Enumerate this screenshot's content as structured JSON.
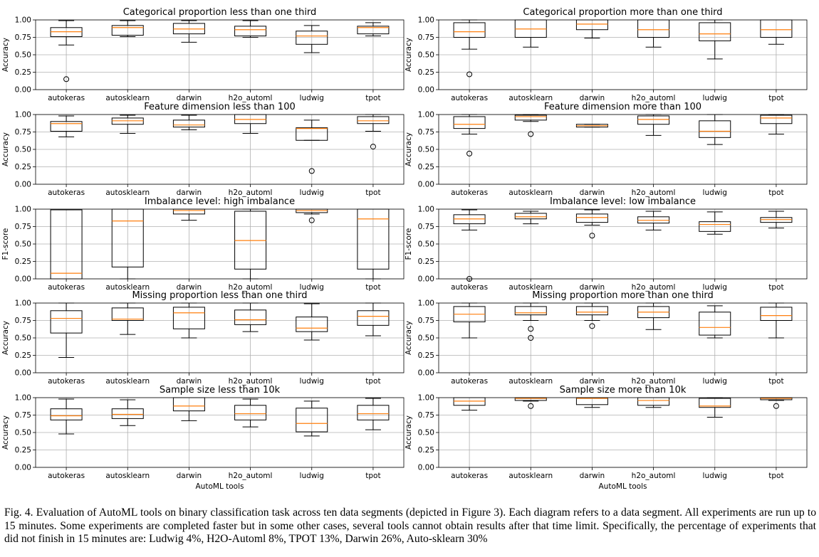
{
  "caption": "Fig. 4.  Evaluation of AutoML tools on binary classification task across ten data segments (depicted in Figure 3). Each diagram refers to a data segment. All experiments are run up to 15 minutes. Some experiments are completed faster but in some other cases, several tools cannot obtain results after that time limit. Specifically, the percentage of experiments that did not finish in 15 minutes are: Ludwig 4%, H2O-Automl 8%, TPOT 13%, Darwin 26%, Auto-sklearn 30%",
  "colors": {
    "box": "#000000",
    "median": "#ff7f0e",
    "grid": "#b0b0b0"
  },
  "chart_data": [
    {
      "type": "boxplot",
      "title": "Categorical proportion less than one third",
      "ylabel": "Accuracy",
      "xlabel": "",
      "ylim": [
        0,
        1
      ],
      "yticks": [
        "0.00",
        "0.25",
        "0.50",
        "0.75",
        "1.00"
      ],
      "grid": true,
      "categories": [
        "autokeras",
        "autosklearn",
        "darwin",
        "h2o_automl",
        "ludwig",
        "tpot"
      ],
      "boxes": [
        {
          "whislo": 0.64,
          "q1": 0.76,
          "med": 0.83,
          "q3": 0.89,
          "whishi": 0.99,
          "fliers": [
            0.15
          ]
        },
        {
          "whislo": 0.76,
          "q1": 0.78,
          "med": 0.89,
          "q3": 0.92,
          "whishi": 0.99,
          "fliers": []
        },
        {
          "whislo": 0.68,
          "q1": 0.8,
          "med": 0.87,
          "q3": 0.95,
          "whishi": 0.99,
          "fliers": []
        },
        {
          "whislo": 0.75,
          "q1": 0.77,
          "med": 0.86,
          "q3": 0.91,
          "whishi": 0.99,
          "fliers": []
        },
        {
          "whislo": 0.53,
          "q1": 0.65,
          "med": 0.77,
          "q3": 0.84,
          "whishi": 0.92,
          "fliers": []
        },
        {
          "whislo": 0.77,
          "q1": 0.8,
          "med": 0.89,
          "q3": 0.91,
          "whishi": 0.96,
          "fliers": []
        }
      ]
    },
    {
      "type": "boxplot",
      "title": "Categorical proportion more than one third",
      "ylabel": "Accuracy",
      "xlabel": "",
      "ylim": [
        0,
        1
      ],
      "yticks": [
        "0.00",
        "0.25",
        "0.50",
        "0.75",
        "1.00"
      ],
      "grid": true,
      "categories": [
        "autokeras",
        "autosklearn",
        "darwin",
        "h2o_automl",
        "ludwig",
        "tpot"
      ],
      "boxes": [
        {
          "whislo": 0.58,
          "q1": 0.75,
          "med": 0.83,
          "q3": 0.96,
          "whishi": 1.0,
          "fliers": [
            0.22
          ]
        },
        {
          "whislo": 0.61,
          "q1": 0.75,
          "med": 0.87,
          "q3": 1.0,
          "whishi": 1.0,
          "fliers": []
        },
        {
          "whislo": 0.74,
          "q1": 0.86,
          "med": 0.94,
          "q3": 1.0,
          "whishi": 1.0,
          "fliers": []
        },
        {
          "whislo": 0.61,
          "q1": 0.75,
          "med": 0.86,
          "q3": 1.0,
          "whishi": 1.0,
          "fliers": []
        },
        {
          "whislo": 0.44,
          "q1": 0.7,
          "med": 0.8,
          "q3": 0.96,
          "whishi": 1.0,
          "fliers": []
        },
        {
          "whislo": 0.65,
          "q1": 0.75,
          "med": 0.86,
          "q3": 1.0,
          "whishi": 1.0,
          "fliers": []
        }
      ]
    },
    {
      "type": "boxplot",
      "title": "Feature dimension less than 100",
      "ylabel": "Accuracy",
      "xlabel": "",
      "ylim": [
        0,
        1
      ],
      "yticks": [
        "0.00",
        "0.25",
        "0.50",
        "0.75",
        "1.00"
      ],
      "grid": true,
      "categories": [
        "autokeras",
        "autosklearn",
        "darwin",
        "h2o_automl",
        "ludwig",
        "tpot"
      ],
      "boxes": [
        {
          "whislo": 0.68,
          "q1": 0.76,
          "med": 0.87,
          "q3": 0.9,
          "whishi": 0.98,
          "fliers": []
        },
        {
          "whislo": 0.73,
          "q1": 0.86,
          "med": 0.91,
          "q3": 0.95,
          "whishi": 0.99,
          "fliers": []
        },
        {
          "whislo": 0.78,
          "q1": 0.82,
          "med": 0.85,
          "q3": 0.92,
          "whishi": 0.99,
          "fliers": []
        },
        {
          "whislo": 0.73,
          "q1": 0.87,
          "med": 0.93,
          "q3": 1.0,
          "whishi": 1.0,
          "fliers": []
        },
        {
          "whislo": 0.63,
          "q1": 0.63,
          "med": 0.8,
          "q3": 0.81,
          "whishi": 0.92,
          "fliers": [
            0.19
          ]
        },
        {
          "whislo": 0.76,
          "q1": 0.87,
          "med": 0.91,
          "q3": 0.97,
          "whishi": 1.0,
          "fliers": [
            0.54
          ]
        }
      ]
    },
    {
      "type": "boxplot",
      "title": "Feature dimension more than 100",
      "ylabel": "Accuracy",
      "xlabel": "",
      "ylim": [
        0,
        1
      ],
      "yticks": [
        "0.00",
        "0.25",
        "0.50",
        "0.75",
        "1.00"
      ],
      "grid": true,
      "categories": [
        "autokeras",
        "autosklearn",
        "darwin",
        "h2o_automl",
        "ludwig",
        "tpot"
      ],
      "boxes": [
        {
          "whislo": 0.72,
          "q1": 0.8,
          "med": 0.86,
          "q3": 0.97,
          "whishi": 1.0,
          "fliers": [
            0.44
          ]
        },
        {
          "whislo": 0.9,
          "q1": 0.92,
          "med": 0.97,
          "q3": 0.99,
          "whishi": 1.0,
          "fliers": [
            0.72
          ]
        },
        {
          "whislo": 0.82,
          "q1": 0.82,
          "med": 0.84,
          "q3": 0.86,
          "whishi": 0.86,
          "fliers": []
        },
        {
          "whislo": 0.7,
          "q1": 0.86,
          "med": 0.93,
          "q3": 0.98,
          "whishi": 1.0,
          "fliers": []
        },
        {
          "whislo": 0.57,
          "q1": 0.67,
          "med": 0.76,
          "q3": 0.91,
          "whishi": 1.0,
          "fliers": []
        },
        {
          "whislo": 0.72,
          "q1": 0.87,
          "med": 0.95,
          "q3": 0.99,
          "whishi": 1.0,
          "fliers": []
        }
      ]
    },
    {
      "type": "boxplot",
      "title": "Imbalance level: high imbalance",
      "ylabel": "F1-score",
      "xlabel": "",
      "ylim": [
        0,
        1
      ],
      "yticks": [
        "0.00",
        "0.25",
        "0.50",
        "0.75",
        "1.00"
      ],
      "grid": true,
      "categories": [
        "autokeras",
        "autosklearn",
        "darwin",
        "h2o_automl",
        "ludwig",
        "tpot"
      ],
      "boxes": [
        {
          "whislo": 0.0,
          "q1": 0.0,
          "med": 0.08,
          "q3": 0.99,
          "whishi": 0.99,
          "fliers": []
        },
        {
          "whislo": 0.0,
          "q1": 0.17,
          "med": 0.83,
          "q3": 1.0,
          "whishi": 1.0,
          "fliers": []
        },
        {
          "whislo": 0.84,
          "q1": 0.93,
          "med": 0.98,
          "q3": 1.0,
          "whishi": 1.0,
          "fliers": []
        },
        {
          "whislo": 0.0,
          "q1": 0.14,
          "med": 0.55,
          "q3": 0.97,
          "whishi": 1.0,
          "fliers": []
        },
        {
          "whislo": 0.93,
          "q1": 0.95,
          "med": 0.98,
          "q3": 1.0,
          "whishi": 1.0,
          "fliers": [
            0.84
          ]
        },
        {
          "whislo": 0.0,
          "q1": 0.14,
          "med": 0.86,
          "q3": 1.0,
          "whishi": 1.0,
          "fliers": []
        }
      ]
    },
    {
      "type": "boxplot",
      "title": "Imbalance level: low imbalance",
      "ylabel": "F1-score",
      "xlabel": "",
      "ylim": [
        0,
        1
      ],
      "yticks": [
        "0.00",
        "0.25",
        "0.50",
        "0.75",
        "1.00"
      ],
      "grid": true,
      "categories": [
        "autokeras",
        "autosklearn",
        "darwin",
        "h2o_automl",
        "ludwig",
        "tpot"
      ],
      "boxes": [
        {
          "whislo": 0.7,
          "q1": 0.79,
          "med": 0.86,
          "q3": 0.92,
          "whishi": 0.99,
          "fliers": [
            0.0
          ]
        },
        {
          "whislo": 0.79,
          "q1": 0.86,
          "med": 0.89,
          "q3": 0.94,
          "whishi": 0.97,
          "fliers": []
        },
        {
          "whislo": 0.77,
          "q1": 0.81,
          "med": 0.88,
          "q3": 0.93,
          "whishi": 0.99,
          "fliers": [
            0.62
          ]
        },
        {
          "whislo": 0.7,
          "q1": 0.8,
          "med": 0.84,
          "q3": 0.89,
          "whishi": 0.97,
          "fliers": []
        },
        {
          "whislo": 0.64,
          "q1": 0.68,
          "med": 0.78,
          "q3": 0.82,
          "whishi": 0.96,
          "fliers": []
        },
        {
          "whislo": 0.73,
          "q1": 0.81,
          "med": 0.85,
          "q3": 0.88,
          "whishi": 0.97,
          "fliers": []
        }
      ]
    },
    {
      "type": "boxplot",
      "title": "Missing proportion less than one third",
      "ylabel": "Accuracy",
      "xlabel": "",
      "ylim": [
        0,
        1
      ],
      "yticks": [
        "0.00",
        "0.25",
        "0.50",
        "0.75",
        "1.00"
      ],
      "grid": true,
      "categories": [
        "autokeras",
        "autosklearn",
        "darwin",
        "h2o_automl",
        "ludwig",
        "tpot"
      ],
      "boxes": [
        {
          "whislo": 0.22,
          "q1": 0.57,
          "med": 0.78,
          "q3": 0.89,
          "whishi": 1.0,
          "fliers": []
        },
        {
          "whislo": 0.55,
          "q1": 0.75,
          "med": 0.77,
          "q3": 0.93,
          "whishi": 1.0,
          "fliers": []
        },
        {
          "whislo": 0.5,
          "q1": 0.63,
          "med": 0.86,
          "q3": 0.94,
          "whishi": 1.0,
          "fliers": []
        },
        {
          "whislo": 0.59,
          "q1": 0.69,
          "med": 0.76,
          "q3": 0.9,
          "whishi": 1.0,
          "fliers": []
        },
        {
          "whislo": 0.47,
          "q1": 0.59,
          "med": 0.64,
          "q3": 0.8,
          "whishi": 0.99,
          "fliers": []
        },
        {
          "whislo": 0.53,
          "q1": 0.68,
          "med": 0.81,
          "q3": 0.89,
          "whishi": 1.0,
          "fliers": []
        }
      ]
    },
    {
      "type": "boxplot",
      "title": "Missing proportion more than one third",
      "ylabel": "Accuracy",
      "xlabel": "",
      "ylim": [
        0,
        1
      ],
      "yticks": [
        "0.00",
        "0.25",
        "0.50",
        "0.75",
        "1.00"
      ],
      "grid": true,
      "categories": [
        "autokeras",
        "autosklearn",
        "darwin",
        "h2o_automl",
        "ludwig",
        "tpot"
      ],
      "boxes": [
        {
          "whislo": 0.5,
          "q1": 0.73,
          "med": 0.84,
          "q3": 0.95,
          "whishi": 1.0,
          "fliers": []
        },
        {
          "whislo": 0.75,
          "q1": 0.83,
          "med": 0.86,
          "q3": 0.95,
          "whishi": 1.0,
          "fliers": [
            0.63,
            0.5
          ]
        },
        {
          "whislo": 0.75,
          "q1": 0.83,
          "med": 0.87,
          "q3": 0.95,
          "whishi": 1.0,
          "fliers": [
            0.67
          ]
        },
        {
          "whislo": 0.62,
          "q1": 0.79,
          "med": 0.87,
          "q3": 0.95,
          "whishi": 1.0,
          "fliers": []
        },
        {
          "whislo": 0.5,
          "q1": 0.54,
          "med": 0.65,
          "q3": 0.87,
          "whishi": 0.96,
          "fliers": []
        },
        {
          "whislo": 0.5,
          "q1": 0.75,
          "med": 0.82,
          "q3": 0.94,
          "whishi": 1.0,
          "fliers": []
        }
      ]
    },
    {
      "type": "boxplot",
      "title": "Sample size less than 10k",
      "ylabel": "Accuracy",
      "xlabel": "AutoML tools",
      "ylim": [
        0,
        1
      ],
      "yticks": [
        "0.00",
        "0.25",
        "0.50",
        "0.75",
        "1.00"
      ],
      "grid": true,
      "categories": [
        "autokeras",
        "autosklearn",
        "darwin",
        "h2o_automl",
        "ludwig",
        "tpot"
      ],
      "boxes": [
        {
          "whislo": 0.48,
          "q1": 0.68,
          "med": 0.74,
          "q3": 0.84,
          "whishi": 0.98,
          "fliers": []
        },
        {
          "whislo": 0.6,
          "q1": 0.7,
          "med": 0.76,
          "q3": 0.84,
          "whishi": 0.97,
          "fliers": []
        },
        {
          "whislo": 0.67,
          "q1": 0.81,
          "med": 0.88,
          "q3": 1.0,
          "whishi": 1.0,
          "fliers": []
        },
        {
          "whislo": 0.58,
          "q1": 0.68,
          "med": 0.77,
          "q3": 0.89,
          "whishi": 0.98,
          "fliers": []
        },
        {
          "whislo": 0.45,
          "q1": 0.51,
          "med": 0.63,
          "q3": 0.85,
          "whishi": 0.95,
          "fliers": []
        },
        {
          "whislo": 0.54,
          "q1": 0.68,
          "med": 0.77,
          "q3": 0.89,
          "whishi": 0.99,
          "fliers": []
        }
      ]
    },
    {
      "type": "boxplot",
      "title": "Sample size more than 10k",
      "ylabel": "Accuracy",
      "xlabel": "AutoML tools",
      "ylim": [
        0,
        1
      ],
      "yticks": [
        "0.00",
        "0.25",
        "0.50",
        "0.75",
        "1.00"
      ],
      "grid": true,
      "categories": [
        "autokeras",
        "autosklearn",
        "darwin",
        "h2o_automl",
        "ludwig",
        "tpot"
      ],
      "boxes": [
        {
          "whislo": 0.82,
          "q1": 0.89,
          "med": 0.95,
          "q3": 1.0,
          "whishi": 1.0,
          "fliers": []
        },
        {
          "whislo": 0.95,
          "q1": 0.96,
          "med": 0.99,
          "q3": 1.0,
          "whishi": 1.0,
          "fliers": [
            0.88
          ]
        },
        {
          "whislo": 0.86,
          "q1": 0.9,
          "med": 0.99,
          "q3": 1.0,
          "whishi": 1.0,
          "fliers": []
        },
        {
          "whislo": 0.86,
          "q1": 0.89,
          "med": 0.96,
          "q3": 1.0,
          "whishi": 1.0,
          "fliers": []
        },
        {
          "whislo": 0.72,
          "q1": 0.86,
          "med": 0.88,
          "q3": 0.99,
          "whishi": 1.0,
          "fliers": []
        },
        {
          "whislo": 0.96,
          "q1": 0.97,
          "med": 0.99,
          "q3": 1.0,
          "whishi": 1.0,
          "fliers": [
            0.88
          ]
        }
      ]
    }
  ]
}
